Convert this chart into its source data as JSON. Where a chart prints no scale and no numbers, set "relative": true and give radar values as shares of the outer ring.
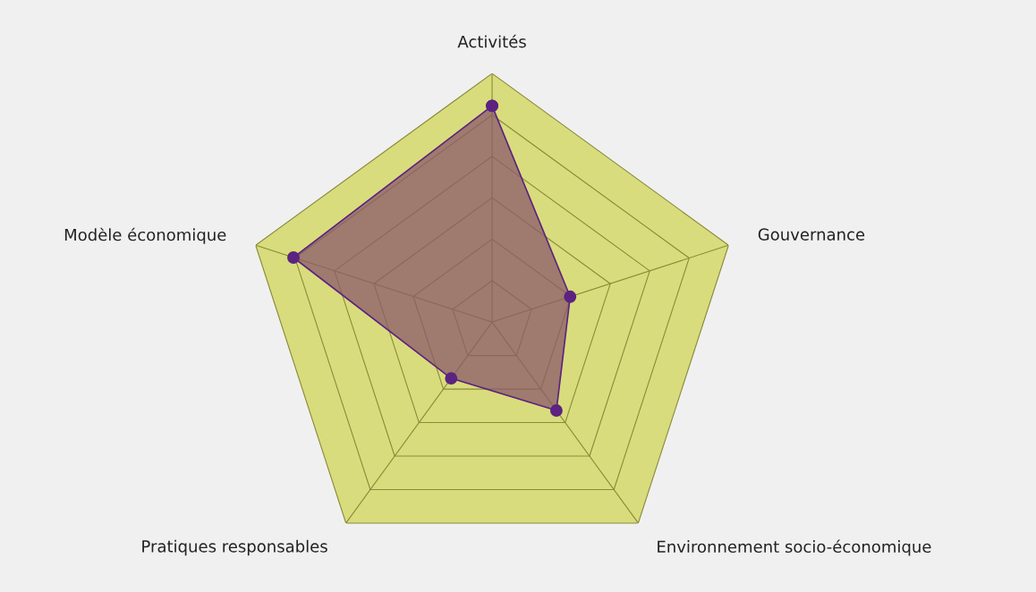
{
  "chart_data": {
    "type": "radar",
    "relative": true,
    "grid": true,
    "marker": "circle",
    "categories": [
      "Activités",
      "Gouvernance",
      "Environnement socio-économique",
      "Pratiques responsables",
      "Modèle économique"
    ],
    "series": [
      {
        "color": "#5c2380",
        "values": [
          0.87,
          0.33,
          0.44,
          0.28,
          0.84
        ]
      }
    ]
  }
}
